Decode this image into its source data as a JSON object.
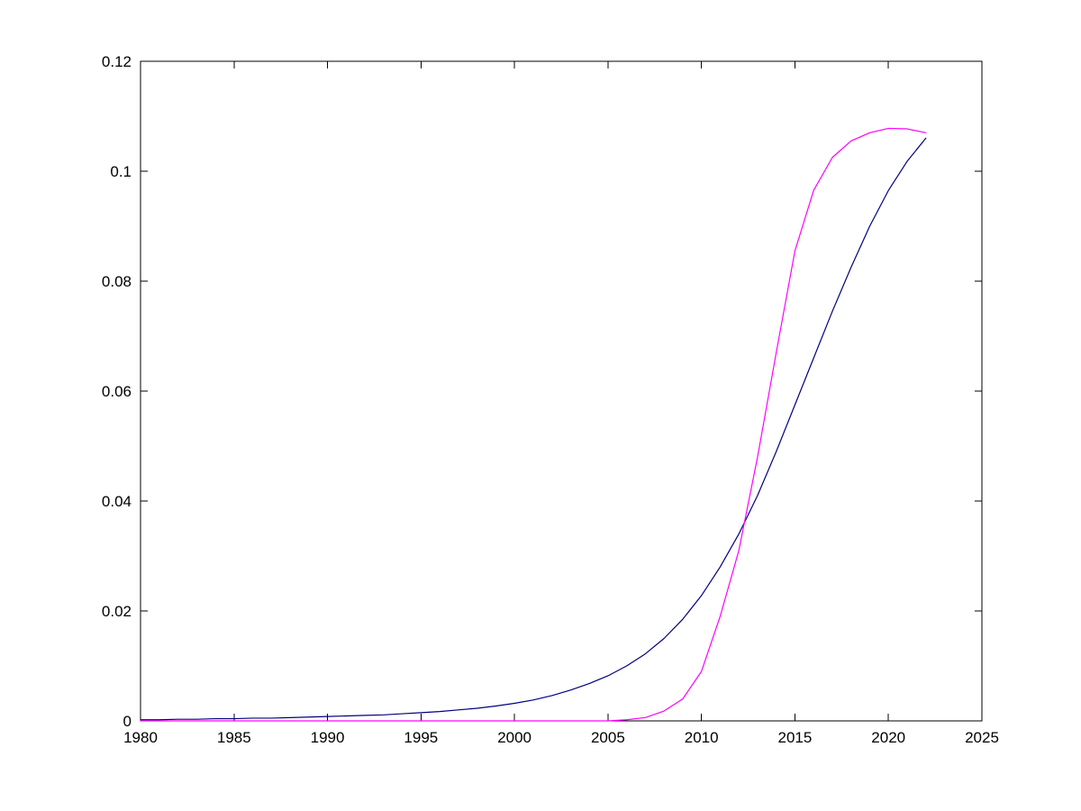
{
  "chart_data": {
    "type": "line",
    "title": "",
    "xlabel": "",
    "ylabel": "",
    "xlim": [
      1980,
      2025
    ],
    "ylim": [
      0,
      0.12
    ],
    "grid": false,
    "legend": "none",
    "background": "#FFFFFF",
    "axis_color": "#000000",
    "x_ticks": [
      1980,
      1985,
      1990,
      1995,
      2000,
      2005,
      2010,
      2015,
      2020,
      2025
    ],
    "x_tick_labels": [
      "1980",
      "1985",
      "1990",
      "1995",
      "2000",
      "2005",
      "2010",
      "2015",
      "2020",
      "2025"
    ],
    "y_ticks": [
      0,
      0.02,
      0.04,
      0.06,
      0.08,
      0.1,
      0.12
    ],
    "y_tick_labels": [
      "0",
      "0.02",
      "0.04",
      "0.06",
      "0.08",
      "0.1",
      "0.12"
    ],
    "x": [
      1980,
      1981,
      1982,
      1983,
      1984,
      1985,
      1986,
      1987,
      1988,
      1989,
      1990,
      1991,
      1992,
      1993,
      1994,
      1995,
      1996,
      1997,
      1998,
      1999,
      2000,
      2001,
      2002,
      2003,
      2004,
      2005,
      2006,
      2007,
      2008,
      2009,
      2010,
      2011,
      2012,
      2013,
      2014,
      2015,
      2016,
      2017,
      2018,
      2019,
      2020,
      2021,
      2022
    ],
    "series": [
      {
        "name": "dark-blue-line",
        "color": "#000080",
        "values": [
          0.0002,
          0.0002,
          0.0003,
          0.0003,
          0.0004,
          0.0004,
          0.0005,
          0.0005,
          0.0006,
          0.0007,
          0.0008,
          0.0009,
          0.001,
          0.0011,
          0.0013,
          0.0015,
          0.0017,
          0.002,
          0.0023,
          0.0027,
          0.0032,
          0.0038,
          0.0046,
          0.0056,
          0.0068,
          0.0082,
          0.01,
          0.0122,
          0.015,
          0.0185,
          0.0228,
          0.028,
          0.034,
          0.041,
          0.049,
          0.0575,
          0.066,
          0.0745,
          0.0825,
          0.09,
          0.0965,
          0.1018,
          0.106
        ]
      },
      {
        "name": "magenta-line",
        "color": "#FF00FF",
        "values": [
          0,
          0,
          0,
          0,
          0,
          0,
          0,
          0,
          0,
          0,
          0,
          0,
          0,
          0,
          0,
          0,
          0,
          0,
          0,
          0,
          0,
          0,
          0,
          0,
          0,
          0,
          0.0002,
          0.0006,
          0.0018,
          0.004,
          0.009,
          0.019,
          0.031,
          0.048,
          0.067,
          0.0855,
          0.0965,
          0.1025,
          0.1055,
          0.107,
          0.1078,
          0.1077,
          0.107
        ]
      }
    ]
  }
}
